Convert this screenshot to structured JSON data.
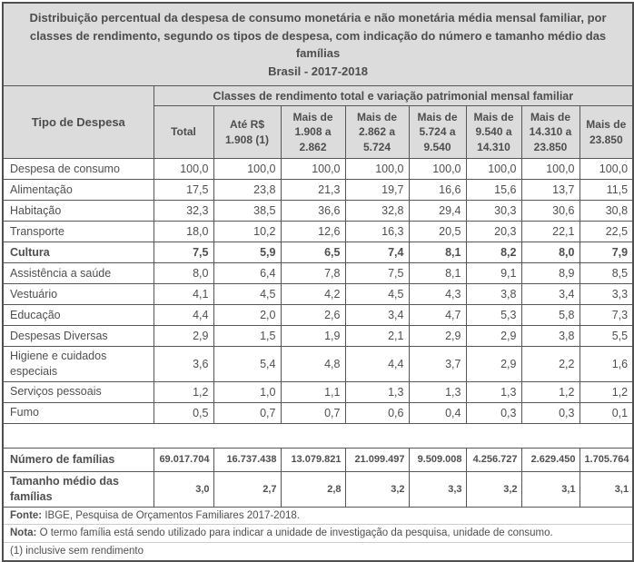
{
  "title": {
    "text": "Distribuição percentual da despesa de consumo monetária e não monetária média mensal familiar, por classes de rendimento, segundo os tipos de despesa, com indicação do número e tamanho médio das famílias",
    "subtitle": "Brasil - 2017-2018"
  },
  "table": {
    "corner_header": "Tipo de Despesa",
    "group_header": "Classes de rendimento total e variação patrimonial mensal familiar",
    "columns": [
      "Total",
      "Até R$ 1.908 (1)",
      "Mais de 1.908 a 2.862",
      "Mais de 2.862 a 5.724",
      "Mais de 5.724 a 9.540",
      "Mais de 9.540 a 14.310",
      "Mais de 14.310 a 23.850",
      "Mais de 23.850"
    ],
    "rows": [
      {
        "label": "Despesa de consumo",
        "bold": false,
        "values": [
          "100,0",
          "100,0",
          "100,0",
          "100,0",
          "100,0",
          "100,0",
          "100,0",
          "100,0"
        ]
      },
      {
        "label": "Alimentação",
        "bold": false,
        "values": [
          "17,5",
          "23,8",
          "21,3",
          "19,7",
          "16,6",
          "15,6",
          "13,7",
          "11,5"
        ]
      },
      {
        "label": "Habitação",
        "bold": false,
        "values": [
          "32,3",
          "38,5",
          "36,6",
          "32,8",
          "29,4",
          "30,3",
          "30,6",
          "30,8"
        ]
      },
      {
        "label": "Transporte",
        "bold": false,
        "values": [
          "18,0",
          "10,2",
          "12,6",
          "16,3",
          "20,5",
          "20,3",
          "22,1",
          "22,5"
        ]
      },
      {
        "label": "Cultura",
        "bold": true,
        "values": [
          "7,5",
          "5,9",
          "6,5",
          "7,4",
          "8,1",
          "8,2",
          "8,0",
          "7,9"
        ]
      },
      {
        "label": "Assistência a saúde",
        "bold": false,
        "values": [
          "8,0",
          "6,4",
          "7,8",
          "7,5",
          "8,1",
          "9,1",
          "8,9",
          "8,5"
        ]
      },
      {
        "label": "Vestuário",
        "bold": false,
        "values": [
          "4,1",
          "4,5",
          "4,2",
          "4,5",
          "4,3",
          "3,8",
          "3,4",
          "3,3"
        ]
      },
      {
        "label": "Educação",
        "bold": false,
        "values": [
          "4,4",
          "2,0",
          "2,6",
          "3,4",
          "4,7",
          "5,3",
          "5,8",
          "7,3"
        ]
      },
      {
        "label": "Despesas Diversas",
        "bold": false,
        "values": [
          "2,9",
          "1,5",
          "1,9",
          "2,1",
          "2,9",
          "2,9",
          "3,8",
          "5,5"
        ]
      },
      {
        "label": "Higiene e cuidados especiais",
        "bold": false,
        "values": [
          "3,6",
          "5,4",
          "4,8",
          "4,4",
          "3,7",
          "2,9",
          "2,2",
          "1,6"
        ]
      },
      {
        "label": "Serviços pessoais",
        "bold": false,
        "values": [
          "1,2",
          "1,0",
          "1,1",
          "1,3",
          "1,3",
          "1,3",
          "1,2",
          "1,2"
        ]
      },
      {
        "label": "Fumo",
        "bold": false,
        "values": [
          "0,5",
          "0,7",
          "0,7",
          "0,6",
          "0,4",
          "0,3",
          "0,3",
          "0,1"
        ]
      }
    ],
    "summary_rows": [
      {
        "label": "Número de famílias",
        "bold": true,
        "values": [
          "69.017.704",
          "16.737.438",
          "13.079.821",
          "21.099.497",
          "9.509.008",
          "4.256.727",
          "2.629.450",
          "1.705.764"
        ]
      },
      {
        "label": "Tamanho médio das famílias",
        "bold": true,
        "values": [
          "3,0",
          "2,7",
          "2,8",
          "3,2",
          "3,3",
          "3,2",
          "3,1",
          "3,1"
        ]
      }
    ]
  },
  "footer": {
    "fonte_label": "Fonte:",
    "fonte_text": "IBGE, Pesquisa de Orçamentos Familiares 2017-2018.",
    "nota_label": "Nota:",
    "nota_text": "O termo família está sendo utilizado para indicar a unidade de investigação da pesquisa, unidade de consumo.",
    "note1": "(1) inclusive sem rendimento"
  },
  "colors": {
    "header_bg": "#dcdcdc",
    "border": "#565656",
    "text": "#4f4f4f",
    "footer_divider": "#cccccc"
  }
}
